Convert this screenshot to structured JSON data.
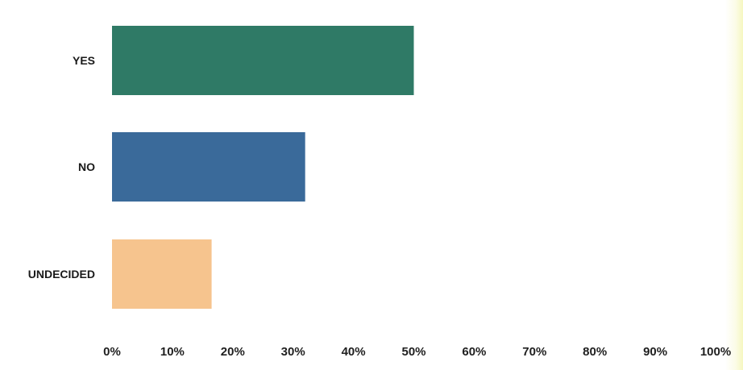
{
  "chart_data": {
    "type": "bar",
    "orientation": "horizontal",
    "categories": [
      "YES",
      "NO",
      "UNDECIDED"
    ],
    "values": [
      50,
      32,
      16.5
    ],
    "value_unit": "%",
    "xlim": [
      0,
      100
    ],
    "x_ticks": [
      "0%",
      "10%",
      "20%",
      "30%",
      "40%",
      "50%",
      "60%",
      "70%",
      "80%",
      "90%",
      "100%"
    ],
    "title": "",
    "xlabel": "",
    "ylabel": "",
    "grid": false,
    "legend": "none",
    "colors": [
      "#2f7a66",
      "#3a6a9a",
      "#f6c48e"
    ]
  }
}
